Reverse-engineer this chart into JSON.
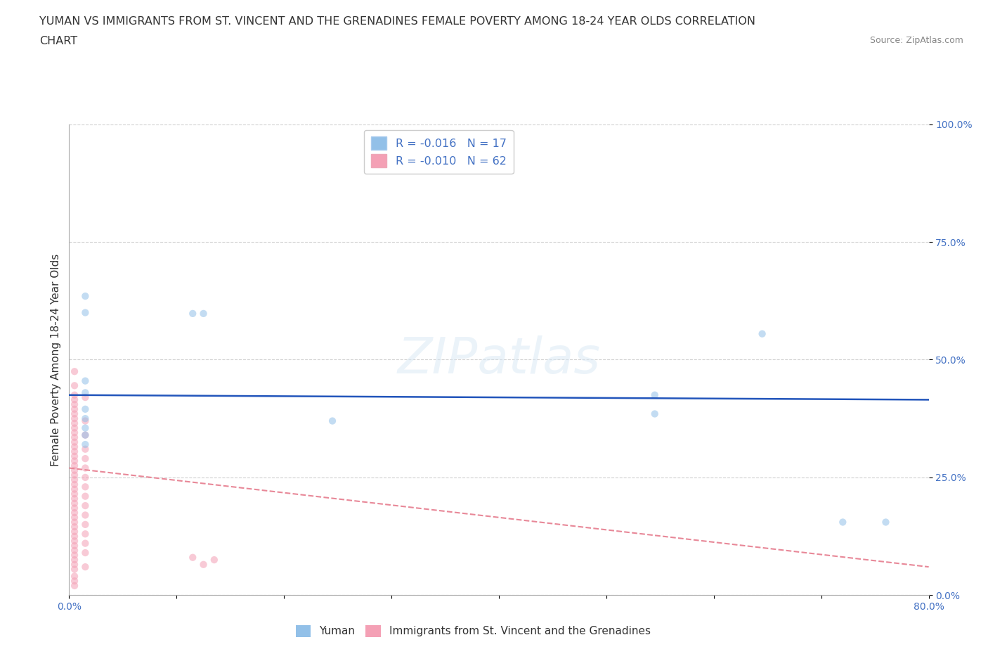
{
  "title_line1": "YUMAN VS IMMIGRANTS FROM ST. VINCENT AND THE GRENADINES FEMALE POVERTY AMONG 18-24 YEAR OLDS CORRELATION",
  "title_line2": "CHART",
  "source": "Source: ZipAtlas.com",
  "ylabel": "Female Poverty Among 18-24 Year Olds",
  "xlim": [
    0.0,
    0.8
  ],
  "ylim": [
    0.0,
    1.0
  ],
  "ytick_vals": [
    0.0,
    0.25,
    0.5,
    0.75,
    1.0
  ],
  "xtick_vals": [
    0.0,
    0.1,
    0.2,
    0.3,
    0.4,
    0.5,
    0.6,
    0.7,
    0.8
  ],
  "xtick_labels": [
    "0.0%",
    "",
    "",
    "",
    "",
    "",
    "",
    "",
    "80.0%"
  ],
  "blue_scatter": [
    [
      0.015,
      0.635
    ],
    [
      0.015,
      0.6
    ],
    [
      0.115,
      0.598
    ],
    [
      0.125,
      0.598
    ],
    [
      0.015,
      0.455
    ],
    [
      0.015,
      0.43
    ],
    [
      0.015,
      0.395
    ],
    [
      0.015,
      0.375
    ],
    [
      0.015,
      0.355
    ],
    [
      0.015,
      0.34
    ],
    [
      0.015,
      0.32
    ],
    [
      0.245,
      0.37
    ],
    [
      0.545,
      0.425
    ],
    [
      0.545,
      0.385
    ],
    [
      0.645,
      0.555
    ],
    [
      0.72,
      0.155
    ],
    [
      0.76,
      0.155
    ]
  ],
  "pink_scatter": [
    [
      0.005,
      0.475
    ],
    [
      0.005,
      0.445
    ],
    [
      0.005,
      0.425
    ],
    [
      0.005,
      0.415
    ],
    [
      0.005,
      0.405
    ],
    [
      0.005,
      0.395
    ],
    [
      0.005,
      0.385
    ],
    [
      0.005,
      0.375
    ],
    [
      0.005,
      0.365
    ],
    [
      0.005,
      0.355
    ],
    [
      0.005,
      0.345
    ],
    [
      0.005,
      0.335
    ],
    [
      0.005,
      0.325
    ],
    [
      0.005,
      0.315
    ],
    [
      0.005,
      0.305
    ],
    [
      0.005,
      0.295
    ],
    [
      0.005,
      0.285
    ],
    [
      0.005,
      0.275
    ],
    [
      0.005,
      0.265
    ],
    [
      0.005,
      0.255
    ],
    [
      0.005,
      0.245
    ],
    [
      0.005,
      0.235
    ],
    [
      0.005,
      0.225
    ],
    [
      0.005,
      0.215
    ],
    [
      0.005,
      0.205
    ],
    [
      0.005,
      0.195
    ],
    [
      0.005,
      0.185
    ],
    [
      0.005,
      0.175
    ],
    [
      0.005,
      0.165
    ],
    [
      0.005,
      0.155
    ],
    [
      0.005,
      0.145
    ],
    [
      0.005,
      0.135
    ],
    [
      0.005,
      0.125
    ],
    [
      0.005,
      0.115
    ],
    [
      0.005,
      0.105
    ],
    [
      0.005,
      0.095
    ],
    [
      0.005,
      0.085
    ],
    [
      0.005,
      0.075
    ],
    [
      0.005,
      0.065
    ],
    [
      0.005,
      0.055
    ],
    [
      0.005,
      0.04
    ],
    [
      0.005,
      0.03
    ],
    [
      0.005,
      0.02
    ],
    [
      0.015,
      0.42
    ],
    [
      0.015,
      0.37
    ],
    [
      0.015,
      0.34
    ],
    [
      0.015,
      0.31
    ],
    [
      0.015,
      0.29
    ],
    [
      0.015,
      0.27
    ],
    [
      0.015,
      0.25
    ],
    [
      0.015,
      0.23
    ],
    [
      0.015,
      0.21
    ],
    [
      0.015,
      0.19
    ],
    [
      0.015,
      0.17
    ],
    [
      0.015,
      0.15
    ],
    [
      0.015,
      0.13
    ],
    [
      0.015,
      0.11
    ],
    [
      0.015,
      0.09
    ],
    [
      0.015,
      0.06
    ],
    [
      0.115,
      0.08
    ],
    [
      0.125,
      0.065
    ],
    [
      0.135,
      0.075
    ]
  ],
  "blue_line_x": [
    0.0,
    0.8
  ],
  "blue_line_y": [
    0.425,
    0.415
  ],
  "pink_line_x": [
    0.0,
    0.8
  ],
  "pink_line_y": [
    0.27,
    0.06
  ],
  "blue_scatter_color": "#92c0e8",
  "pink_scatter_color": "#f4a0b5",
  "blue_line_color": "#2255bb",
  "pink_line_color": "#e88898",
  "grid_color": "#cccccc",
  "bg_color": "#ffffff",
  "title_color": "#333333",
  "tick_color": "#4472c4",
  "source_color": "#888888",
  "scatter_size": 55,
  "scatter_alpha": 0.55,
  "title_fontsize": 11.5,
  "tick_fontsize": 10,
  "ylabel_fontsize": 11
}
